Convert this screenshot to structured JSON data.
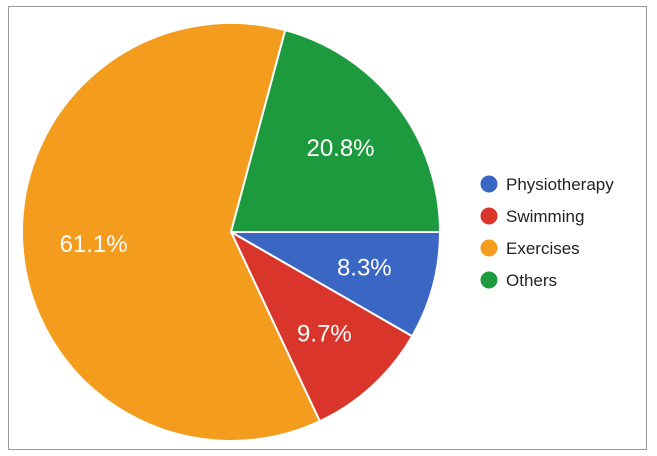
{
  "chart_data": {
    "type": "pie",
    "categories": [
      "Physiotherapy",
      "Swimming",
      "Exercises",
      "Others"
    ],
    "values": [
      8.3,
      9.7,
      61.1,
      20.8
    ],
    "labels": [
      "8.3%",
      "9.7%",
      "61.1%",
      "20.8%"
    ],
    "colors": [
      "#3a66c4",
      "#d9352b",
      "#f39c1e",
      "#1e9a3e"
    ],
    "start_angle_deg": 0,
    "direction": "clockwise",
    "legend": {
      "position": "right",
      "items": [
        "Physiotherapy",
        "Swimming",
        "Exercises",
        "Others"
      ]
    }
  }
}
